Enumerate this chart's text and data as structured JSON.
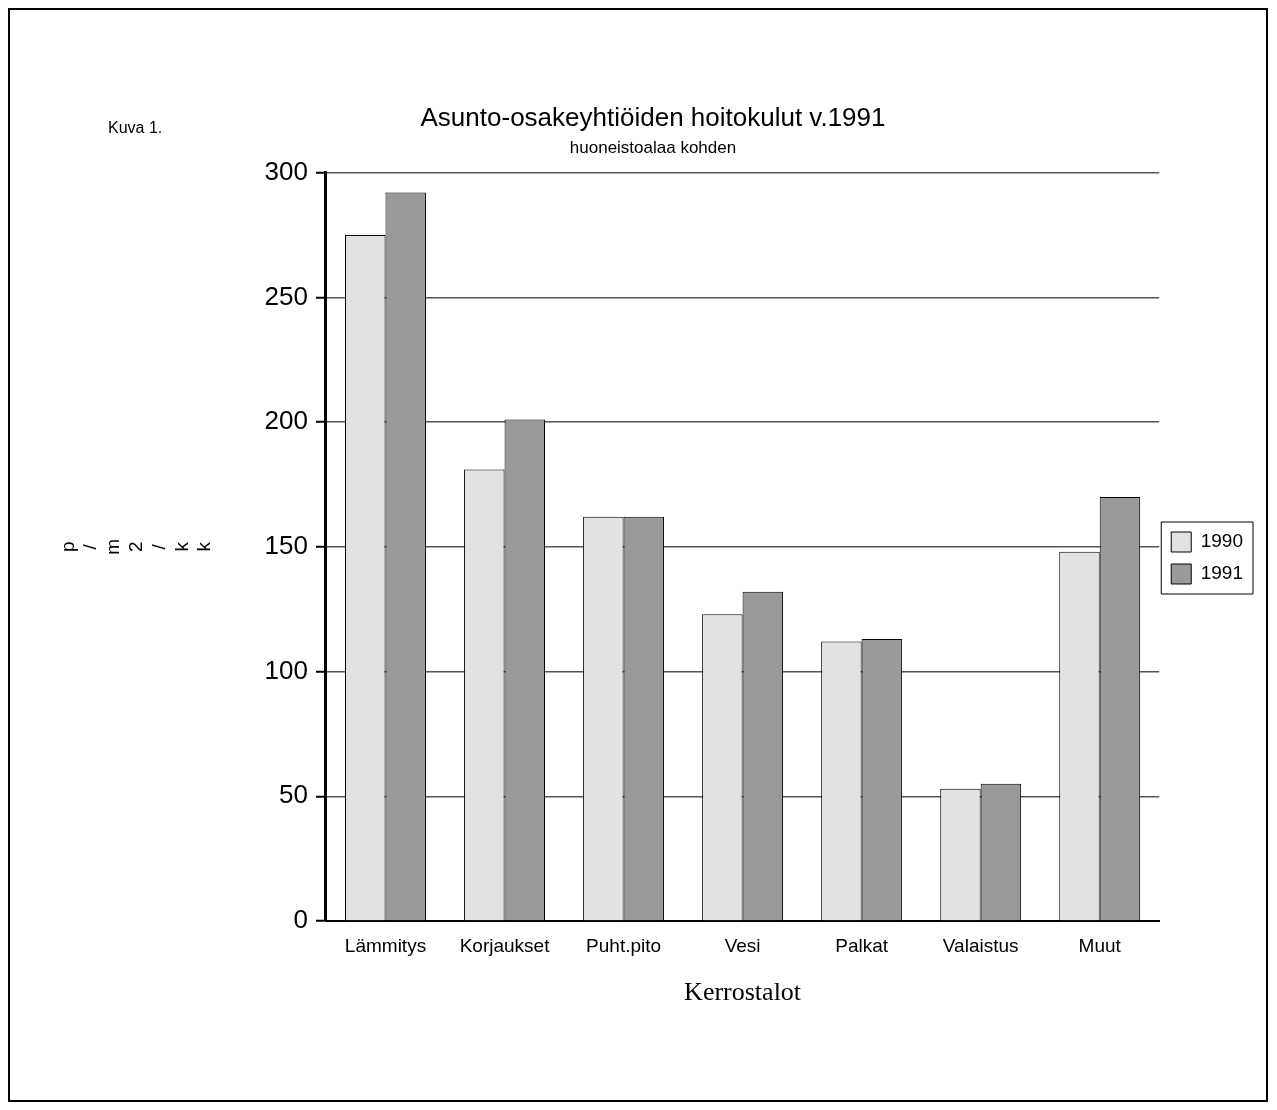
{
  "chart_data": {
    "type": "bar",
    "title": "Asunto-osakeyhtiöiden hoitokulut v.1991",
    "subtitle": "huoneistoalaa kohden",
    "xlabel": "Kerrostalot",
    "ylabel": "p/m2/kk",
    "annotations": [
      "Kuva 1."
    ],
    "categories": [
      "Lämmitys",
      "Korjaukset",
      "Puht.pito",
      "Vesi",
      "Palkat",
      "Valaistus",
      "Muut"
    ],
    "series": [
      {
        "name": "1990",
        "color": "#e2e2e2",
        "values": [
          275,
          181,
          162,
          123,
          112,
          53,
          148
        ]
      },
      {
        "name": "1991",
        "color": "#9a9a9a",
        "values": [
          292,
          201,
          162,
          132,
          113,
          55,
          170
        ]
      }
    ],
    "ylim": [
      0,
      300
    ],
    "yticks": [
      0,
      50,
      100,
      150,
      200,
      250,
      300
    ],
    "grid": "y",
    "legend": "right"
  }
}
